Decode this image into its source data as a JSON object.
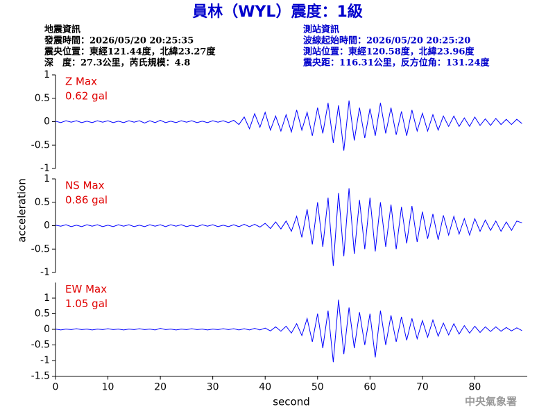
{
  "header": {
    "title": "員林（WYL）震度：1級",
    "left": [
      "地震資訊",
      "發震時間：2026/05/20 20:25:35",
      "震央位置：東經121.44度，北緯23.27度",
      "深　度：27.3公里，芮氏規模：4.8"
    ],
    "right": [
      "測站資訊",
      "波線起始時間：2026/05/20 20:25:20",
      "測站位置：東經120.58度，北緯23.96度",
      "震央距：116.31公里，反方位角：131.24度"
    ],
    "footer": "中央氣象署"
  },
  "chart_data": [
    {
      "type": "line",
      "color": "#0000ff",
      "annotations": [
        "Z Max",
        "0.62 gal"
      ],
      "annotation_color": "#e00000",
      "xlim": [
        0,
        90
      ],
      "ylim": [
        -1,
        1
      ],
      "yticks": [
        -1,
        -0.5,
        0,
        0.5,
        1
      ],
      "x": [
        0,
        1,
        2,
        3,
        4,
        5,
        6,
        7,
        8,
        9,
        10,
        11,
        12,
        13,
        14,
        15,
        16,
        17,
        18,
        19,
        20,
        21,
        22,
        23,
        24,
        25,
        26,
        27,
        28,
        29,
        30,
        31,
        32,
        33,
        34,
        35,
        36,
        37,
        38,
        39,
        40,
        41,
        42,
        43,
        44,
        45,
        46,
        47,
        48,
        49,
        50,
        51,
        52,
        53,
        54,
        55,
        56,
        57,
        58,
        59,
        60,
        61,
        62,
        63,
        64,
        65,
        66,
        67,
        68,
        69,
        70,
        71,
        72,
        73,
        74,
        75,
        76,
        77,
        78,
        79,
        80,
        81,
        82,
        83,
        84,
        85,
        86,
        87,
        88,
        89
      ],
      "values": [
        0.01,
        -0.02,
        0.02,
        -0.01,
        0.02,
        -0.02,
        0.01,
        -0.02,
        0.02,
        -0.01,
        0.02,
        -0.02,
        0.01,
        -0.02,
        0.02,
        -0.01,
        0.02,
        -0.03,
        0.02,
        -0.02,
        0.03,
        -0.02,
        0.01,
        -0.02,
        0.02,
        -0.01,
        0.02,
        -0.02,
        0.01,
        -0.02,
        0.02,
        -0.01,
        0.02,
        -0.02,
        0.03,
        -0.06,
        0.1,
        -0.15,
        0.17,
        -0.12,
        0.2,
        -0.18,
        0.12,
        -0.2,
        0.15,
        -0.22,
        0.25,
        -0.18,
        0.2,
        -0.3,
        0.3,
        -0.25,
        0.4,
        -0.45,
        0.35,
        -0.62,
        0.45,
        -0.4,
        0.3,
        -0.35,
        0.28,
        -0.3,
        0.4,
        -0.25,
        0.3,
        -0.28,
        0.22,
        -0.3,
        0.25,
        -0.2,
        0.18,
        -0.2,
        0.15,
        -0.18,
        0.12,
        -0.1,
        0.12,
        -0.1,
        0.08,
        -0.1,
        0.1,
        -0.08,
        0.06,
        -0.08,
        0.07,
        -0.06,
        0.05,
        -0.06,
        0.05,
        -0.04
      ]
    },
    {
      "type": "line",
      "color": "#0000ff",
      "annotations": [
        "NS Max",
        "0.86 gal"
      ],
      "annotation_color": "#e00000",
      "ylabel": "acceleration",
      "xlim": [
        0,
        90
      ],
      "ylim": [
        -1,
        1
      ],
      "yticks": [
        -1,
        -0.5,
        0,
        0.5,
        1
      ],
      "x": [
        0,
        1,
        2,
        3,
        4,
        5,
        6,
        7,
        8,
        9,
        10,
        11,
        12,
        13,
        14,
        15,
        16,
        17,
        18,
        19,
        20,
        21,
        22,
        23,
        24,
        25,
        26,
        27,
        28,
        29,
        30,
        31,
        32,
        33,
        34,
        35,
        36,
        37,
        38,
        39,
        40,
        41,
        42,
        43,
        44,
        45,
        46,
        47,
        48,
        49,
        50,
        51,
        52,
        53,
        54,
        55,
        56,
        57,
        58,
        59,
        60,
        61,
        62,
        63,
        64,
        65,
        66,
        67,
        68,
        69,
        70,
        71,
        72,
        73,
        74,
        75,
        76,
        77,
        78,
        79,
        80,
        81,
        82,
        83,
        84,
        85,
        86,
        87,
        88,
        89
      ],
      "values": [
        0.01,
        -0.01,
        0.02,
        -0.02,
        0.01,
        -0.02,
        0.02,
        -0.01,
        0.02,
        -0.02,
        0.01,
        -0.02,
        0.02,
        -0.01,
        0.02,
        -0.02,
        0.01,
        -0.02,
        0.02,
        -0.01,
        0.02,
        -0.02,
        0.02,
        -0.01,
        0.02,
        -0.02,
        0.01,
        -0.02,
        0.02,
        -0.01,
        0.02,
        -0.02,
        0.01,
        -0.02,
        0.02,
        -0.02,
        0.03,
        -0.02,
        0.03,
        -0.03,
        0.05,
        -0.06,
        0.08,
        -0.07,
        0.1,
        -0.12,
        0.2,
        -0.25,
        0.35,
        -0.4,
        0.5,
        -0.45,
        0.6,
        -0.86,
        0.7,
        -0.65,
        0.8,
        -0.6,
        0.55,
        -0.5,
        0.6,
        -0.55,
        0.5,
        -0.45,
        0.45,
        -0.5,
        0.4,
        -0.38,
        0.42,
        -0.35,
        0.3,
        -0.28,
        0.25,
        -0.3,
        0.22,
        -0.2,
        0.2,
        -0.18,
        0.15,
        -0.2,
        0.15,
        -0.12,
        0.12,
        -0.1,
        0.1,
        -0.12,
        0.08,
        -0.1,
        0.1,
        0.06
      ]
    },
    {
      "type": "line",
      "color": "#0000ff",
      "annotations": [
        "EW Max",
        "1.05 gal"
      ],
      "annotation_color": "#e00000",
      "xlabel": "second",
      "xlim": [
        0,
        90
      ],
      "xticks": [
        0,
        10,
        20,
        30,
        40,
        50,
        60,
        70,
        80
      ],
      "ylim": [
        -1.5,
        1.5
      ],
      "yticks": [
        -1.5,
        -1,
        -0.5,
        0,
        0.5,
        1
      ],
      "x": [
        0,
        1,
        2,
        3,
        4,
        5,
        6,
        7,
        8,
        9,
        10,
        11,
        12,
        13,
        14,
        15,
        16,
        17,
        18,
        19,
        20,
        21,
        22,
        23,
        24,
        25,
        26,
        27,
        28,
        29,
        30,
        31,
        32,
        33,
        34,
        35,
        36,
        37,
        38,
        39,
        40,
        41,
        42,
        43,
        44,
        45,
        46,
        47,
        48,
        49,
        50,
        51,
        52,
        53,
        54,
        55,
        56,
        57,
        58,
        59,
        60,
        61,
        62,
        63,
        64,
        65,
        66,
        67,
        68,
        69,
        70,
        71,
        72,
        73,
        74,
        75,
        76,
        77,
        78,
        79,
        80,
        81,
        82,
        83,
        84,
        85,
        86,
        87,
        88,
        89
      ],
      "values": [
        0.01,
        -0.02,
        0.01,
        -0.01,
        0.02,
        -0.01,
        0.01,
        -0.02,
        0.01,
        -0.01,
        0.02,
        -0.01,
        0.01,
        -0.02,
        0.01,
        -0.01,
        0.02,
        -0.01,
        0.01,
        -0.02,
        0.03,
        -0.01,
        0.01,
        -0.02,
        0.01,
        -0.01,
        0.02,
        -0.01,
        0.01,
        -0.02,
        0.01,
        -0.01,
        0.02,
        -0.01,
        0.02,
        -0.02,
        0.02,
        -0.02,
        0.03,
        -0.02,
        0.04,
        -0.05,
        0.08,
        -0.06,
        0.1,
        -0.12,
        0.18,
        -0.2,
        0.35,
        -0.4,
        0.5,
        -0.6,
        0.6,
        -1.05,
        0.95,
        -0.8,
        0.7,
        -0.6,
        0.55,
        -0.5,
        0.5,
        -0.9,
        0.6,
        -0.5,
        0.45,
        -0.4,
        0.4,
        -0.35,
        0.35,
        -0.3,
        0.28,
        -0.25,
        0.3,
        -0.22,
        0.2,
        -0.18,
        0.18,
        -0.15,
        0.12,
        -0.12,
        0.1,
        -0.1,
        0.08,
        -0.07,
        0.08,
        -0.06,
        0.06,
        -0.05,
        0.05,
        -0.04
      ]
    }
  ]
}
